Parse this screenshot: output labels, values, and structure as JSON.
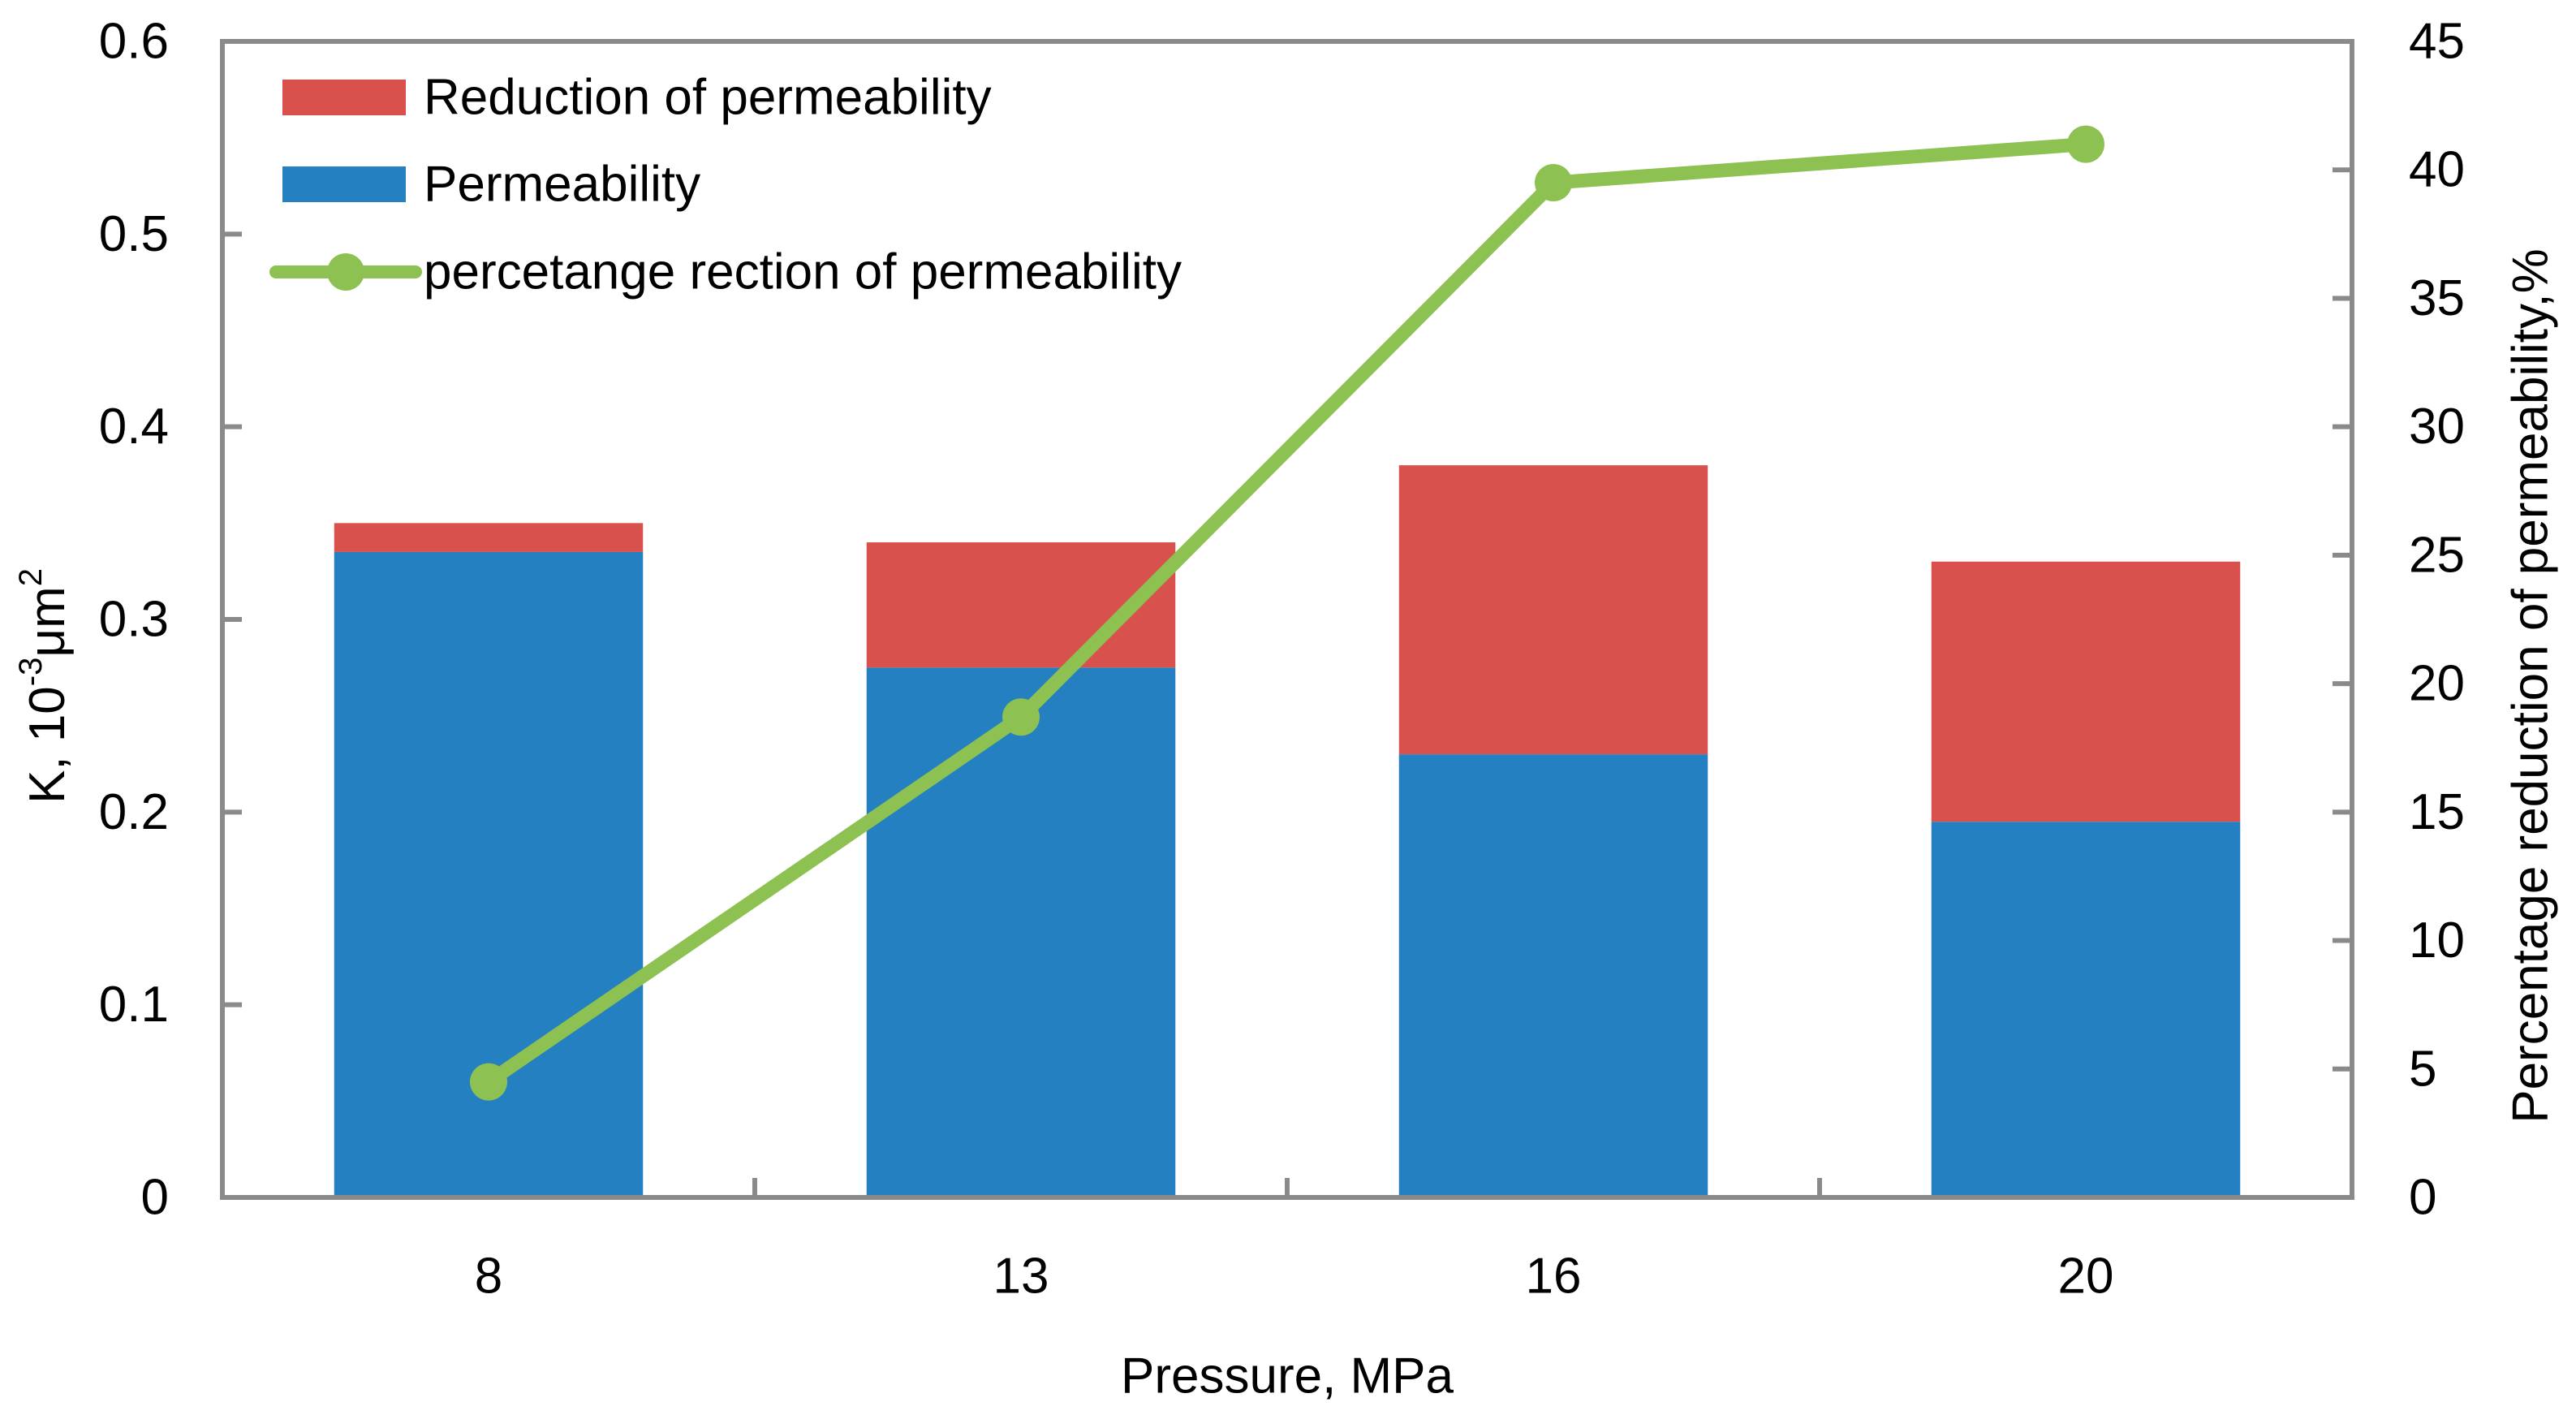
{
  "chart_data": {
    "type": "combo",
    "title": "",
    "categories": [
      "8",
      "13",
      "16",
      "20"
    ],
    "stacked_bars": true,
    "series": [
      {
        "name": "Permeability",
        "type": "bar",
        "axis": "left",
        "color": "#2480C0",
        "values": [
          0.335,
          0.275,
          0.23,
          0.195
        ]
      },
      {
        "name": "Reduction of permeability",
        "type": "bar",
        "axis": "left",
        "color": "#D9514C",
        "values": [
          0.015,
          0.065,
          0.15,
          0.135
        ]
      },
      {
        "name": "percetange rection of permeability",
        "type": "line",
        "axis": "right",
        "color": "#8DC152",
        "values": [
          4.5,
          18.7,
          39.5,
          41.0
        ]
      }
    ],
    "bar_totals": [
      0.35,
      0.34,
      0.38,
      0.33
    ],
    "left_axis": {
      "title_parts": [
        {
          "t": "K,  10"
        },
        {
          "t": "-3",
          "sup": true
        },
        {
          "t": "μm"
        },
        {
          "t": "2",
          "sup": true
        }
      ],
      "min": 0,
      "max": 0.6,
      "step": 0.1,
      "ticks": [
        "0",
        "0.1",
        "0.2",
        "0.3",
        "0.4",
        "0.5",
        "0.6"
      ]
    },
    "right_axis": {
      "title": "Percentage reduction of permeability,%",
      "min": 0,
      "max": 45,
      "step": 5,
      "ticks": [
        "0",
        "5",
        "10",
        "15",
        "20",
        "25",
        "30",
        "35",
        "40",
        "45"
      ]
    },
    "x_axis": {
      "title": "Pressure, MPa"
    },
    "legend": {
      "position": "top-left-inside",
      "items": [
        {
          "series_index": 1,
          "marker": "rect"
        },
        {
          "series_index": 0,
          "marker": "rect"
        },
        {
          "series_index": 2,
          "marker": "line-dot"
        }
      ]
    },
    "grid": false,
    "colors": {
      "frame": "#8A8A8A",
      "text": "#000000",
      "background": "#FFFFFF"
    }
  }
}
